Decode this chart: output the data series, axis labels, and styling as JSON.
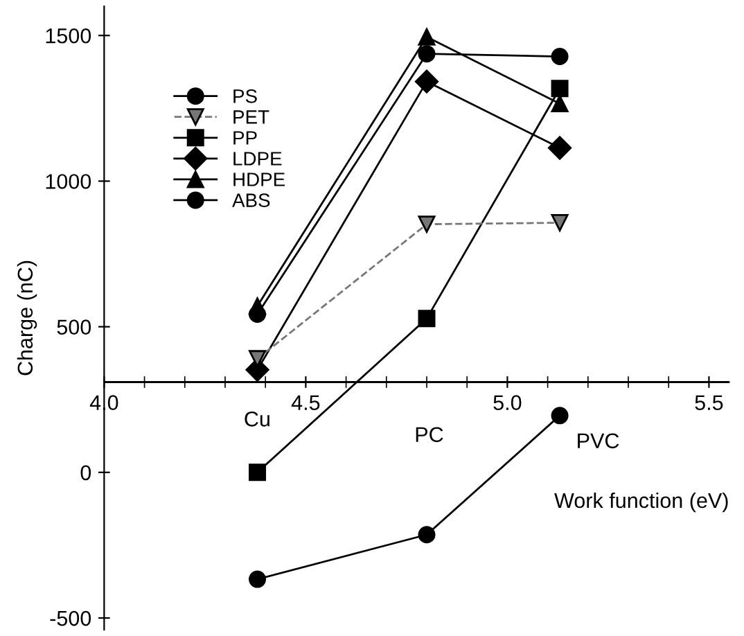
{
  "chart_data": {
    "type": "line",
    "xlabel": "Work function (eV)",
    "ylabel": "Charge (nC)",
    "x": [
      4.38,
      4.8,
      5.13
    ],
    "series": [
      {
        "name": "PS",
        "color": "#000000",
        "marker": "circle",
        "line_style": "solid",
        "values": [
          -367,
          -214,
          195
        ]
      },
      {
        "name": "PET",
        "color": "#777777",
        "marker": "triangle_down",
        "line_style": "dashed",
        "values": [
          390,
          852,
          857
        ]
      },
      {
        "name": "PP",
        "color": "#000000",
        "marker": "square",
        "line_style": "solid",
        "values": [
          0,
          528,
          1318
        ]
      },
      {
        "name": "LDPE",
        "color": "#000000",
        "marker": "diamond",
        "line_style": "solid",
        "values": [
          352,
          1342,
          1114
        ]
      },
      {
        "name": "HDPE",
        "color": "#000000",
        "marker": "triangle",
        "line_style": "solid",
        "values": [
          571,
          1495,
          1266
        ]
      },
      {
        "name": "ABS",
        "color": "#000000",
        "marker": "circle",
        "line_style": "solid",
        "values": [
          543,
          1437,
          1428
        ]
      }
    ],
    "annotations": [
      "Cu",
      "PC",
      "PVC"
    ],
    "ref_lines": [
      {
        "axis": "y",
        "value": 310
      }
    ],
    "xlim": [
      4.0,
      5.55
    ],
    "ylim": [
      -540,
      1600
    ],
    "xticks": [
      {
        "value": 4.0,
        "label": "4.0"
      },
      {
        "value": 4.5,
        "label": "4.5"
      },
      {
        "value": 5.0,
        "label": "5.0"
      },
      {
        "value": 5.5,
        "label": "5.5"
      }
    ],
    "yticks": [
      -500,
      0,
      500,
      1000,
      1500
    ],
    "grid": false,
    "legend": "top left"
  }
}
